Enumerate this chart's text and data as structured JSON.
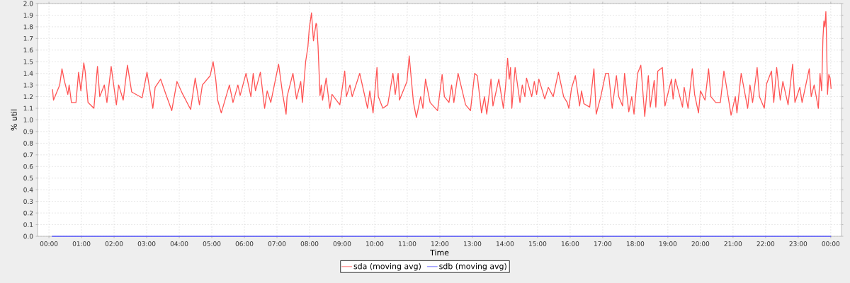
{
  "chart_data": {
    "type": "line",
    "xlabel": "Time",
    "ylabel": "% util",
    "xlim": [
      -0.35,
      24.33
    ],
    "xticks": [
      {
        "value": 0,
        "label": "00:00"
      },
      {
        "value": 1,
        "label": "01:00"
      },
      {
        "value": 2,
        "label": "02:00"
      },
      {
        "value": 3,
        "label": "03:00"
      },
      {
        "value": 4,
        "label": "04:00"
      },
      {
        "value": 5,
        "label": "05:00"
      },
      {
        "value": 6,
        "label": "06:00"
      },
      {
        "value": 7,
        "label": "07:00"
      },
      {
        "value": 8,
        "label": "08:00"
      },
      {
        "value": 9,
        "label": "09:00"
      },
      {
        "value": 10,
        "label": "10:00"
      },
      {
        "value": 11,
        "label": "11:00"
      },
      {
        "value": 12,
        "label": "12:00"
      },
      {
        "value": 13,
        "label": "13:00"
      },
      {
        "value": 14,
        "label": "14:00"
      },
      {
        "value": 15,
        "label": "15:00"
      },
      {
        "value": 16,
        "label": "16:00"
      },
      {
        "value": 17,
        "label": "17:00"
      },
      {
        "value": 18,
        "label": "18:00"
      },
      {
        "value": 19,
        "label": "19:00"
      },
      {
        "value": 20,
        "label": "20:00"
      },
      {
        "value": 21,
        "label": "21:00"
      },
      {
        "value": 22,
        "label": "22:00"
      },
      {
        "value": 23,
        "label": "23:00"
      },
      {
        "value": 24,
        "label": "00:00"
      }
    ],
    "ylim": [
      0,
      2
    ],
    "yticks": [
      {
        "value": 0,
        "label": "0.0"
      },
      0.1,
      0.2,
      0.3,
      0.4,
      0.5,
      0.6,
      0.7,
      0.8,
      0.9,
      {
        "value": 1,
        "label": "1.0"
      },
      1.1,
      1.2,
      1.3,
      1.4,
      1.5,
      1.6,
      1.7,
      1.8,
      1.9,
      {
        "value": 2,
        "label": "2.0"
      }
    ],
    "grid": true,
    "legend": "bottom",
    "series": [
      {
        "name": "sda (moving avg)",
        "color": "#ff5555",
        "x": [
          0.11,
          0.14,
          0.33,
          0.4,
          0.47,
          0.58,
          0.62,
          0.69,
          0.83,
          0.91,
          0.98,
          1.07,
          1.11,
          1.2,
          1.38,
          1.49,
          1.56,
          1.7,
          1.78,
          1.91,
          2.07,
          2.14,
          2.28,
          2.41,
          2.54,
          2.86,
          3.01,
          3.19,
          3.26,
          3.43,
          3.59,
          3.77,
          3.93,
          4.09,
          4.35,
          4.49,
          4.62,
          4.71,
          4.95,
          5.04,
          5.12,
          5.18,
          5.29,
          5.54,
          5.65,
          5.8,
          5.87,
          6.05,
          6.2,
          6.27,
          6.34,
          6.49,
          6.62,
          6.7,
          6.81,
          7.05,
          7.17,
          7.28,
          7.31,
          7.49,
          7.6,
          7.73,
          7.78,
          7.88,
          7.95,
          7.99,
          8.06,
          8.1,
          8.12,
          8.2,
          8.22,
          8.26,
          8.29,
          8.32,
          8.36,
          8.4,
          8.51,
          8.62,
          8.69,
          8.93,
          9.08,
          9.13,
          9.24,
          9.31,
          9.54,
          9.78,
          9.85,
          9.95,
          10.07,
          10.11,
          10.25,
          10.4,
          10.56,
          10.63,
          10.72,
          10.76,
          10.99,
          11.06,
          11.14,
          11.19,
          11.28,
          11.41,
          11.48,
          11.56,
          11.7,
          11.93,
          12.07,
          12.14,
          12.28,
          12.36,
          12.43,
          12.56,
          12.79,
          12.94,
          13.07,
          13.15,
          13.28,
          13.37,
          13.44,
          13.57,
          13.63,
          13.81,
          13.95,
          14.02,
          14.08,
          14.13,
          14.17,
          14.21,
          14.31,
          14.46,
          14.53,
          14.61,
          14.66,
          14.82,
          14.9,
          14.97,
          15.04,
          15.22,
          15.33,
          15.48,
          15.64,
          15.8,
          15.91,
          15.96,
          16.04,
          16.16,
          16.29,
          16.35,
          16.42,
          16.6,
          16.73,
          16.8,
          16.94,
          17.09,
          17.18,
          17.29,
          17.42,
          17.49,
          17.61,
          17.67,
          17.8,
          17.89,
          17.96,
          18.07,
          18.17,
          18.29,
          18.4,
          18.46,
          18.58,
          18.63,
          18.69,
          18.83,
          18.91,
          19.11,
          19.16,
          19.23,
          19.45,
          19.5,
          19.62,
          19.75,
          19.82,
          19.94,
          20.0,
          20.14,
          20.25,
          20.32,
          20.47,
          20.61,
          20.72,
          20.85,
          20.94,
          21.07,
          21.12,
          21.25,
          21.45,
          21.52,
          21.6,
          21.74,
          21.81,
          21.96,
          22.03,
          22.18,
          22.25,
          22.34,
          22.45,
          22.53,
          22.69,
          22.83,
          22.9,
          23.05,
          23.12,
          23.34,
          23.4,
          23.49,
          23.62,
          23.67,
          23.72,
          23.76,
          23.79,
          23.82,
          23.85,
          23.87,
          23.9,
          23.94,
          23.98,
          24.01
        ],
        "values": [
          1.26,
          1.17,
          1.3,
          1.44,
          1.34,
          1.22,
          1.3,
          1.15,
          1.15,
          1.41,
          1.25,
          1.49,
          1.42,
          1.15,
          1.1,
          1.46,
          1.2,
          1.3,
          1.15,
          1.46,
          1.13,
          1.3,
          1.17,
          1.47,
          1.24,
          1.19,
          1.41,
          1.1,
          1.28,
          1.35,
          1.22,
          1.08,
          1.33,
          1.23,
          1.09,
          1.36,
          1.13,
          1.3,
          1.38,
          1.5,
          1.35,
          1.17,
          1.06,
          1.3,
          1.15,
          1.3,
          1.21,
          1.4,
          1.2,
          1.4,
          1.25,
          1.41,
          1.1,
          1.25,
          1.15,
          1.48,
          1.23,
          1.05,
          1.2,
          1.4,
          1.18,
          1.33,
          1.15,
          1.5,
          1.63,
          1.78,
          1.92,
          1.76,
          1.68,
          1.83,
          1.82,
          1.64,
          1.43,
          1.21,
          1.3,
          1.17,
          1.36,
          1.1,
          1.22,
          1.13,
          1.42,
          1.2,
          1.3,
          1.2,
          1.4,
          1.1,
          1.25,
          1.06,
          1.45,
          1.2,
          1.1,
          1.13,
          1.4,
          1.22,
          1.4,
          1.17,
          1.33,
          1.55,
          1.3,
          1.15,
          1.02,
          1.2,
          1.1,
          1.35,
          1.15,
          1.08,
          1.39,
          1.2,
          1.15,
          1.3,
          1.15,
          1.4,
          1.13,
          1.08,
          1.4,
          1.38,
          1.06,
          1.2,
          1.05,
          1.35,
          1.12,
          1.35,
          1.1,
          1.3,
          1.53,
          1.35,
          1.45,
          1.1,
          1.45,
          1.15,
          1.3,
          1.2,
          1.36,
          1.2,
          1.33,
          1.22,
          1.35,
          1.18,
          1.28,
          1.2,
          1.41,
          1.2,
          1.15,
          1.1,
          1.27,
          1.38,
          1.12,
          1.25,
          1.14,
          1.11,
          1.44,
          1.05,
          1.2,
          1.4,
          1.4,
          1.1,
          1.38,
          1.2,
          1.12,
          1.4,
          1.07,
          1.2,
          1.05,
          1.4,
          1.47,
          1.03,
          1.38,
          1.11,
          1.34,
          1.11,
          1.42,
          1.45,
          1.12,
          1.35,
          1.18,
          1.35,
          1.11,
          1.28,
          1.1,
          1.44,
          1.22,
          1.06,
          1.25,
          1.17,
          1.44,
          1.2,
          1.15,
          1.15,
          1.42,
          1.2,
          1.04,
          1.2,
          1.06,
          1.4,
          1.1,
          1.3,
          1.15,
          1.45,
          1.2,
          1.1,
          1.31,
          1.42,
          1.15,
          1.45,
          1.17,
          1.33,
          1.13,
          1.48,
          1.15,
          1.28,
          1.15,
          1.44,
          1.2,
          1.3,
          1.1,
          1.4,
          1.25,
          1.7,
          1.85,
          1.8,
          1.93,
          1.7,
          1.22,
          1.39,
          1.36,
          1.27
        ]
      },
      {
        "name": "sdb (moving avg)",
        "color": "#5555ff",
        "x": [
          0.1,
          24.0
        ],
        "values": [
          0,
          0
        ]
      }
    ]
  }
}
